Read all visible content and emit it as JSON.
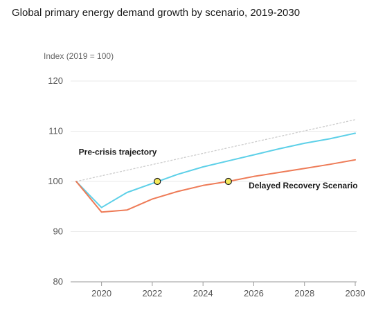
{
  "chart_data": {
    "type": "line",
    "title": "Global primary energy demand growth by scenario, 2019-2030",
    "ylabel": "Index (2019 = 100)",
    "xlabel": "",
    "xlim": [
      2019,
      2030
    ],
    "ylim": [
      80,
      120
    ],
    "x_ticks": [
      2020,
      2022,
      2024,
      2026,
      2028,
      2030
    ],
    "y_ticks": [
      80,
      90,
      100,
      110,
      120
    ],
    "grid": "horizontal",
    "legend": "none",
    "series": [
      {
        "color": "#cccccc",
        "style": "dotted",
        "x": [
          2019,
          2030
        ],
        "y": [
          100,
          112.3
        ]
      },
      {
        "color": "#5dd0e8",
        "style": "solid",
        "x": [
          2019,
          2020,
          2021,
          2022,
          2023,
          2024,
          2025,
          2026,
          2027,
          2028,
          2029,
          2030
        ],
        "y": [
          100,
          94.8,
          97.8,
          99.6,
          101.4,
          102.9,
          104.1,
          105.3,
          106.5,
          107.6,
          108.5,
          109.6
        ]
      },
      {
        "color": "#ee7b57",
        "style": "solid",
        "x": [
          2019,
          2020,
          2021,
          2022,
          2023,
          2024,
          2025,
          2026,
          2027,
          2028,
          2029,
          2030
        ],
        "y": [
          100,
          93.9,
          94.3,
          96.5,
          98.0,
          99.2,
          100.0,
          101.0,
          101.8,
          102.6,
          103.4,
          104.3
        ]
      }
    ],
    "markers": [
      {
        "x": 2022.2,
        "y": 100,
        "fill": "#f5ea5a"
      },
      {
        "x": 2025.0,
        "y": 100,
        "fill": "#f5ea5a"
      }
    ],
    "annotations": [
      {
        "text": "Pre-crisis trajectory",
        "x": 2019.1,
        "y": 105.3
      },
      {
        "text": "Delayed Recovery Scenario",
        "x": 2025.8,
        "y": 98.6
      }
    ]
  }
}
